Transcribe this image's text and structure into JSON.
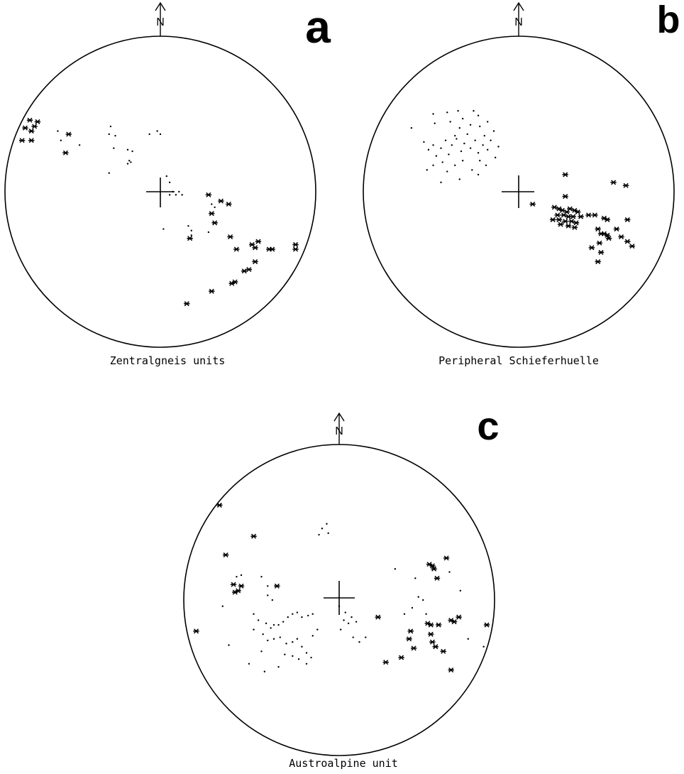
{
  "figure": {
    "colors": {
      "ink": "#000000",
      "paper": "#ffffff"
    },
    "panels": [
      {
        "id": "a",
        "letter": "a",
        "caption": "Zentralgneis units",
        "north_label": "N",
        "stars": [
          [
            -0.84,
            0.46
          ],
          [
            -0.79,
            0.45
          ],
          [
            -0.81,
            0.42
          ],
          [
            -0.87,
            0.41
          ],
          [
            -0.83,
            0.39
          ],
          [
            -0.89,
            0.33
          ],
          [
            -0.83,
            0.33
          ],
          [
            -0.59,
            0.37
          ],
          [
            -0.61,
            0.25
          ],
          [
            0.31,
            -0.02
          ],
          [
            0.39,
            -0.06
          ],
          [
            0.44,
            -0.08
          ],
          [
            0.33,
            -0.14
          ],
          [
            0.35,
            -0.2
          ],
          [
            0.19,
            -0.3
          ],
          [
            0.45,
            -0.29
          ],
          [
            0.49,
            -0.37
          ],
          [
            0.59,
            -0.34
          ],
          [
            0.63,
            -0.32
          ],
          [
            0.61,
            -0.36
          ],
          [
            0.7,
            -0.37
          ],
          [
            0.72,
            -0.37
          ],
          [
            0.87,
            -0.34
          ],
          [
            0.87,
            -0.37
          ],
          [
            0.61,
            -0.45
          ],
          [
            0.57,
            -0.5
          ],
          [
            0.54,
            -0.51
          ],
          [
            0.48,
            -0.58
          ],
          [
            0.46,
            -0.59
          ],
          [
            0.33,
            -0.64
          ],
          [
            0.17,
            -0.72
          ]
        ],
        "dots": [
          [
            -0.66,
            0.39
          ],
          [
            -0.64,
            0.33
          ],
          [
            -0.52,
            0.3
          ],
          [
            -0.32,
            0.42
          ],
          [
            -0.33,
            0.37
          ],
          [
            -0.29,
            0.36
          ],
          [
            -0.3,
            0.28
          ],
          [
            -0.21,
            0.27
          ],
          [
            -0.18,
            0.26
          ],
          [
            -0.2,
            0.2
          ],
          [
            -0.19,
            0.19
          ],
          [
            -0.21,
            0.18
          ],
          [
            -0.33,
            0.12
          ],
          [
            -0.02,
            0.39
          ],
          [
            0.0,
            0.37
          ],
          [
            -0.07,
            0.37
          ],
          [
            0.04,
            0.1
          ],
          [
            0.06,
            0.06
          ],
          [
            0.08,
            0.0
          ],
          [
            0.1,
            -0.02
          ],
          [
            0.06,
            -0.02
          ],
          [
            0.12,
            0.0
          ],
          [
            0.14,
            -0.02
          ],
          [
            0.02,
            -0.24
          ],
          [
            0.18,
            -0.22
          ],
          [
            0.2,
            -0.25
          ],
          [
            0.2,
            -0.28
          ],
          [
            0.31,
            -0.26
          ],
          [
            0.33,
            -0.08
          ],
          [
            0.35,
            -0.1
          ]
        ]
      },
      {
        "id": "b",
        "letter": "b",
        "caption": "Peripheral Schieferhuelle",
        "north_label": "N",
        "stars": [
          [
            0.3,
            0.11
          ],
          [
            0.61,
            0.06
          ],
          [
            0.69,
            0.04
          ],
          [
            0.3,
            -0.03
          ],
          [
            0.23,
            -0.1
          ],
          [
            0.26,
            -0.11
          ],
          [
            0.28,
            -0.12
          ],
          [
            0.31,
            -0.13
          ],
          [
            0.33,
            -0.11
          ],
          [
            0.36,
            -0.12
          ],
          [
            0.38,
            -0.13
          ],
          [
            0.25,
            -0.15
          ],
          [
            0.29,
            -0.15
          ],
          [
            0.32,
            -0.16
          ],
          [
            0.35,
            -0.16
          ],
          [
            0.4,
            -0.16
          ],
          [
            0.22,
            -0.18
          ],
          [
            0.26,
            -0.18
          ],
          [
            0.3,
            -0.19
          ],
          [
            0.34,
            -0.19
          ],
          [
            0.37,
            -0.2
          ],
          [
            0.27,
            -0.21
          ],
          [
            0.32,
            -0.22
          ],
          [
            0.36,
            -0.23
          ],
          [
            0.45,
            -0.15
          ],
          [
            0.49,
            -0.15
          ],
          [
            0.55,
            -0.17
          ],
          [
            0.57,
            -0.18
          ],
          [
            0.51,
            -0.24
          ],
          [
            0.53,
            -0.27
          ],
          [
            0.55,
            -0.27
          ],
          [
            0.57,
            -0.28
          ],
          [
            0.58,
            -0.3
          ],
          [
            0.63,
            -0.24
          ],
          [
            0.66,
            -0.29
          ],
          [
            0.7,
            -0.18
          ],
          [
            0.52,
            -0.33
          ],
          [
            0.47,
            -0.36
          ],
          [
            0.53,
            -0.39
          ],
          [
            0.7,
            -0.32
          ],
          [
            0.73,
            -0.35
          ],
          [
            0.51,
            -0.45
          ],
          [
            0.09,
            -0.08
          ]
        ],
        "dots": [
          [
            -0.69,
            0.41
          ],
          [
            -0.55,
            0.5
          ],
          [
            -0.54,
            0.44
          ],
          [
            -0.46,
            0.51
          ],
          [
            -0.44,
            0.45
          ],
          [
            -0.39,
            0.52
          ],
          [
            -0.38,
            0.41
          ],
          [
            -0.36,
            0.47
          ],
          [
            -0.31,
            0.43
          ],
          [
            -0.29,
            0.52
          ],
          [
            -0.26,
            0.49
          ],
          [
            -0.25,
            0.42
          ],
          [
            -0.2,
            0.45
          ],
          [
            -0.16,
            0.39
          ],
          [
            -0.61,
            0.32
          ],
          [
            -0.58,
            0.27
          ],
          [
            -0.55,
            0.3
          ],
          [
            -0.53,
            0.23
          ],
          [
            -0.5,
            0.28
          ],
          [
            -0.47,
            0.33
          ],
          [
            -0.45,
            0.24
          ],
          [
            -0.43,
            0.3
          ],
          [
            -0.4,
            0.34
          ],
          [
            -0.37,
            0.26
          ],
          [
            -0.35,
            0.31
          ],
          [
            -0.31,
            0.28
          ],
          [
            -0.28,
            0.33
          ],
          [
            -0.26,
            0.25
          ],
          [
            -0.23,
            0.3
          ],
          [
            -0.2,
            0.27
          ],
          [
            -0.18,
            0.33
          ],
          [
            -0.15,
            0.22
          ],
          [
            -0.13,
            0.29
          ],
          [
            -0.59,
            0.14
          ],
          [
            -0.55,
            0.17
          ],
          [
            -0.49,
            0.19
          ],
          [
            -0.46,
            0.13
          ],
          [
            -0.41,
            0.17
          ],
          [
            -0.36,
            0.2
          ],
          [
            -0.3,
            0.14
          ],
          [
            -0.25,
            0.2
          ],
          [
            -0.21,
            0.17
          ],
          [
            -0.26,
            0.11
          ],
          [
            -0.5,
            0.06
          ],
          [
            -0.38,
            0.08
          ],
          [
            -0.41,
            0.36
          ],
          [
            -0.33,
            0.37
          ],
          [
            -0.22,
            0.36
          ]
        ]
      },
      {
        "id": "c",
        "letter": "c",
        "caption": "Austroalpine unit",
        "north_label": "N",
        "stars": [
          [
            -0.77,
            0.61
          ],
          [
            -0.73,
            0.29
          ],
          [
            -0.55,
            0.41
          ],
          [
            -0.68,
            0.1
          ],
          [
            -0.65,
            0.06
          ],
          [
            -0.67,
            0.05
          ],
          [
            -0.63,
            0.09
          ],
          [
            -0.4,
            0.09
          ],
          [
            -0.92,
            -0.2
          ],
          [
            0.25,
            -0.11
          ],
          [
            0.58,
            0.23
          ],
          [
            0.6,
            0.22
          ],
          [
            0.61,
            0.2
          ],
          [
            0.63,
            0.14
          ],
          [
            0.69,
            0.27
          ],
          [
            0.57,
            -0.15
          ],
          [
            0.59,
            -0.16
          ],
          [
            0.64,
            -0.16
          ],
          [
            0.72,
            -0.13
          ],
          [
            0.74,
            -0.14
          ],
          [
            0.77,
            -0.11
          ],
          [
            0.46,
            -0.2
          ],
          [
            0.45,
            -0.25
          ],
          [
            0.59,
            -0.22
          ],
          [
            0.6,
            -0.27
          ],
          [
            0.62,
            -0.3
          ],
          [
            0.67,
            -0.33
          ],
          [
            0.48,
            -0.31
          ],
          [
            0.4,
            -0.37
          ],
          [
            0.3,
            -0.4
          ],
          [
            0.72,
            -0.45
          ],
          [
            0.95,
            -0.16
          ]
        ],
        "dots": [
          [
            -0.11,
            0.46
          ],
          [
            -0.08,
            0.49
          ],
          [
            -0.07,
            0.43
          ],
          [
            -0.13,
            0.42
          ],
          [
            -0.66,
            0.15
          ],
          [
            -0.63,
            0.16
          ],
          [
            -0.5,
            0.15
          ],
          [
            -0.46,
            0.09
          ],
          [
            -0.46,
            0.03
          ],
          [
            -0.43,
            0.0
          ],
          [
            -0.75,
            -0.04
          ],
          [
            -0.55,
            -0.09
          ],
          [
            -0.52,
            -0.13
          ],
          [
            -0.47,
            -0.15
          ],
          [
            -0.44,
            -0.18
          ],
          [
            -0.42,
            -0.16
          ],
          [
            -0.39,
            -0.16
          ],
          [
            -0.36,
            -0.14
          ],
          [
            -0.33,
            -0.11
          ],
          [
            -0.3,
            -0.09
          ],
          [
            -0.27,
            -0.08
          ],
          [
            -0.24,
            -0.11
          ],
          [
            -0.2,
            -0.1
          ],
          [
            -0.17,
            -0.09
          ],
          [
            -0.55,
            -0.19
          ],
          [
            -0.49,
            -0.22
          ],
          [
            -0.46,
            -0.26
          ],
          [
            -0.42,
            -0.25
          ],
          [
            -0.38,
            -0.24
          ],
          [
            -0.34,
            -0.28
          ],
          [
            -0.3,
            -0.27
          ],
          [
            -0.27,
            -0.25
          ],
          [
            -0.24,
            -0.3
          ],
          [
            -0.21,
            -0.34
          ],
          [
            -0.18,
            -0.37
          ],
          [
            -0.35,
            -0.35
          ],
          [
            -0.3,
            -0.36
          ],
          [
            -0.26,
            -0.38
          ],
          [
            -0.14,
            -0.19
          ],
          [
            -0.17,
            -0.23
          ],
          [
            -0.71,
            -0.29
          ],
          [
            -0.5,
            -0.33
          ],
          [
            -0.39,
            -0.43
          ],
          [
            -0.21,
            -0.41
          ],
          [
            -0.48,
            -0.46
          ],
          [
            -0.58,
            -0.41
          ],
          [
            0.0,
            -0.04
          ],
          [
            0.04,
            -0.08
          ],
          [
            0.08,
            -0.11
          ],
          [
            0.11,
            -0.14
          ],
          [
            0.03,
            -0.13
          ],
          [
            0.06,
            -0.15
          ],
          [
            0.01,
            -0.19
          ],
          [
            0.09,
            -0.24
          ],
          [
            0.13,
            -0.27
          ],
          [
            0.17,
            -0.24
          ],
          [
            0.36,
            0.2
          ],
          [
            0.49,
            0.14
          ],
          [
            0.51,
            0.02
          ],
          [
            0.54,
            0.0
          ],
          [
            0.56,
            -0.09
          ],
          [
            0.42,
            -0.09
          ],
          [
            0.47,
            -0.05
          ],
          [
            0.71,
            0.18
          ],
          [
            0.78,
            0.06
          ],
          [
            0.83,
            -0.25
          ],
          [
            0.93,
            -0.3
          ]
        ]
      }
    ]
  }
}
